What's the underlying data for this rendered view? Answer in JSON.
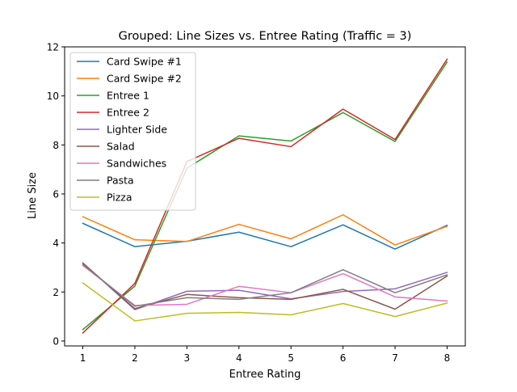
{
  "chart_data": {
    "type": "line",
    "title": "Grouped: Line Sizes vs. Entree Rating (Traffic = 3)",
    "xlabel": "Entree Rating",
    "ylabel": "Line Size",
    "x": [
      1,
      2,
      3,
      4,
      5,
      6,
      7,
      8
    ],
    "xticks": [
      1,
      2,
      3,
      4,
      5,
      6,
      7,
      8
    ],
    "yticks": [
      0,
      2,
      4,
      6,
      8,
      10,
      12
    ],
    "xlim": [
      0.65,
      8.35
    ],
    "ylim": [
      -0.2,
      12.0
    ],
    "grid": false,
    "legend_position": "top-left",
    "series": [
      {
        "name": "Card Swipe #1",
        "color": "#1f77b4",
        "values": [
          4.8,
          3.85,
          4.07,
          4.44,
          3.85,
          4.74,
          3.75,
          4.72
        ]
      },
      {
        "name": "Card Swipe #2",
        "color": "#ff7f0e",
        "values": [
          5.07,
          4.13,
          4.06,
          4.76,
          4.17,
          5.15,
          3.92,
          4.68
        ]
      },
      {
        "name": "Entree 1",
        "color": "#2ca02c",
        "values": [
          0.47,
          2.24,
          7.05,
          8.37,
          8.16,
          9.32,
          8.14,
          11.38
        ]
      },
      {
        "name": "Entree 2",
        "color": "#d62728",
        "values": [
          0.33,
          2.35,
          7.32,
          8.27,
          7.93,
          9.46,
          8.22,
          11.5
        ]
      },
      {
        "name": "Lighter Side",
        "color": "#9467bd",
        "values": [
          3.18,
          1.28,
          2.03,
          2.07,
          1.72,
          2.02,
          2.13,
          2.8
        ]
      },
      {
        "name": "Salad",
        "color": "#8c564b",
        "values": [
          3.18,
          1.32,
          1.9,
          1.77,
          1.7,
          2.11,
          1.3,
          2.65
        ]
      },
      {
        "name": "Sandwiches",
        "color": "#e377c2",
        "values": [
          3.08,
          1.45,
          1.5,
          2.23,
          1.97,
          2.75,
          1.8,
          1.63
        ]
      },
      {
        "name": "Pasta",
        "color": "#7f7f7f",
        "values": [
          3.12,
          1.42,
          1.77,
          1.7,
          1.97,
          2.91,
          1.97,
          2.7
        ]
      },
      {
        "name": "Pizza",
        "color": "#bcbd22",
        "values": [
          2.37,
          0.82,
          1.13,
          1.17,
          1.07,
          1.53,
          1.0,
          1.55
        ]
      }
    ]
  }
}
